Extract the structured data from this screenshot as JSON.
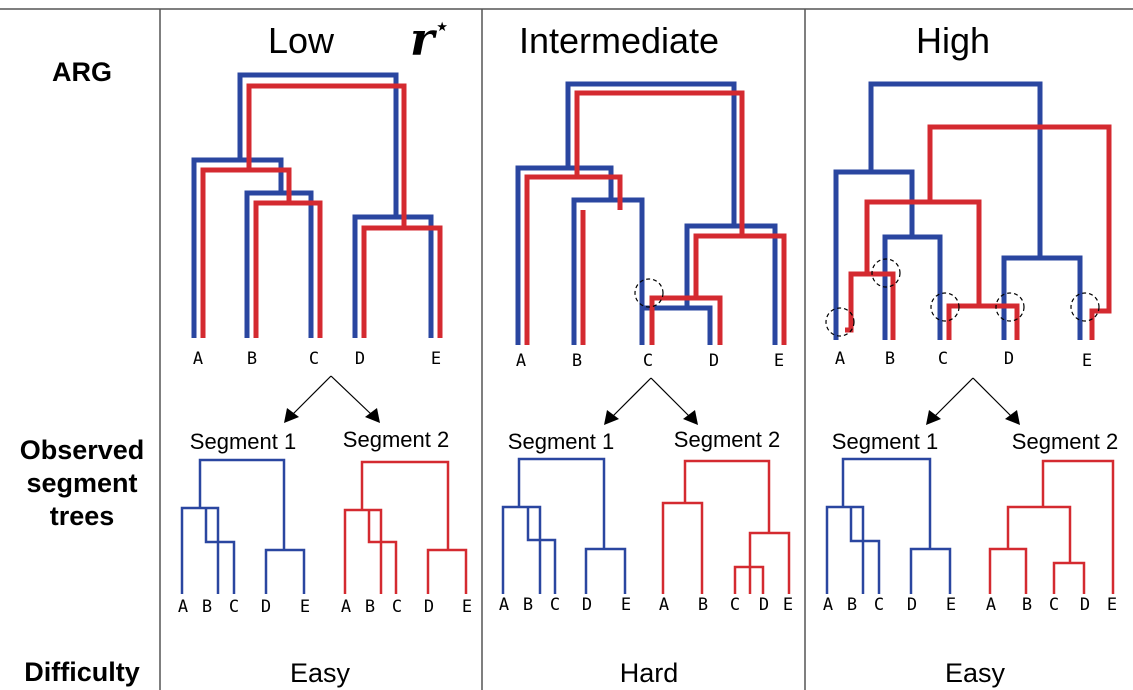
{
  "row_labels": {
    "arg": "ARG",
    "observed_line1": "Observed",
    "observed_line2": "segment",
    "observed_line3": "trees",
    "difficulty": "Difficulty"
  },
  "r_star": {
    "base": "r",
    "superscript": "⋆"
  },
  "columns": [
    {
      "title": "Low",
      "segment1_label": "Segment 1",
      "segment2_label": "Segment 2",
      "difficulty": "Easy",
      "leaves": [
        "A",
        "B",
        "C",
        "D",
        "E"
      ],
      "seg1_leaves": [
        "A",
        "B",
        "C",
        "D",
        "E"
      ],
      "seg2_leaves": [
        "A",
        "B",
        "C",
        "D",
        "E"
      ]
    },
    {
      "title": "Intermediate",
      "segment1_label": "Segment 1",
      "segment2_label": "Segment 2",
      "difficulty": "Hard",
      "leaves": [
        "A",
        "B",
        "C",
        "D",
        "E"
      ],
      "seg1_leaves": [
        "A",
        "B",
        "C",
        "D",
        "E"
      ],
      "seg2_leaves": [
        "A",
        "B",
        "C",
        "D",
        "E"
      ]
    },
    {
      "title": "High",
      "segment1_label": "Segment 1",
      "segment2_label": "Segment 2",
      "difficulty": "Easy",
      "leaves": [
        "A",
        "B",
        "C",
        "D",
        "E"
      ],
      "seg1_leaves": [
        "A",
        "B",
        "C",
        "D",
        "E"
      ],
      "seg2_leaves": [
        "A",
        "B",
        "C",
        "D",
        "E"
      ]
    }
  ],
  "colors": {
    "segment1": "#2a46a0",
    "segment2": "#d42a30",
    "divider": "#555555"
  }
}
